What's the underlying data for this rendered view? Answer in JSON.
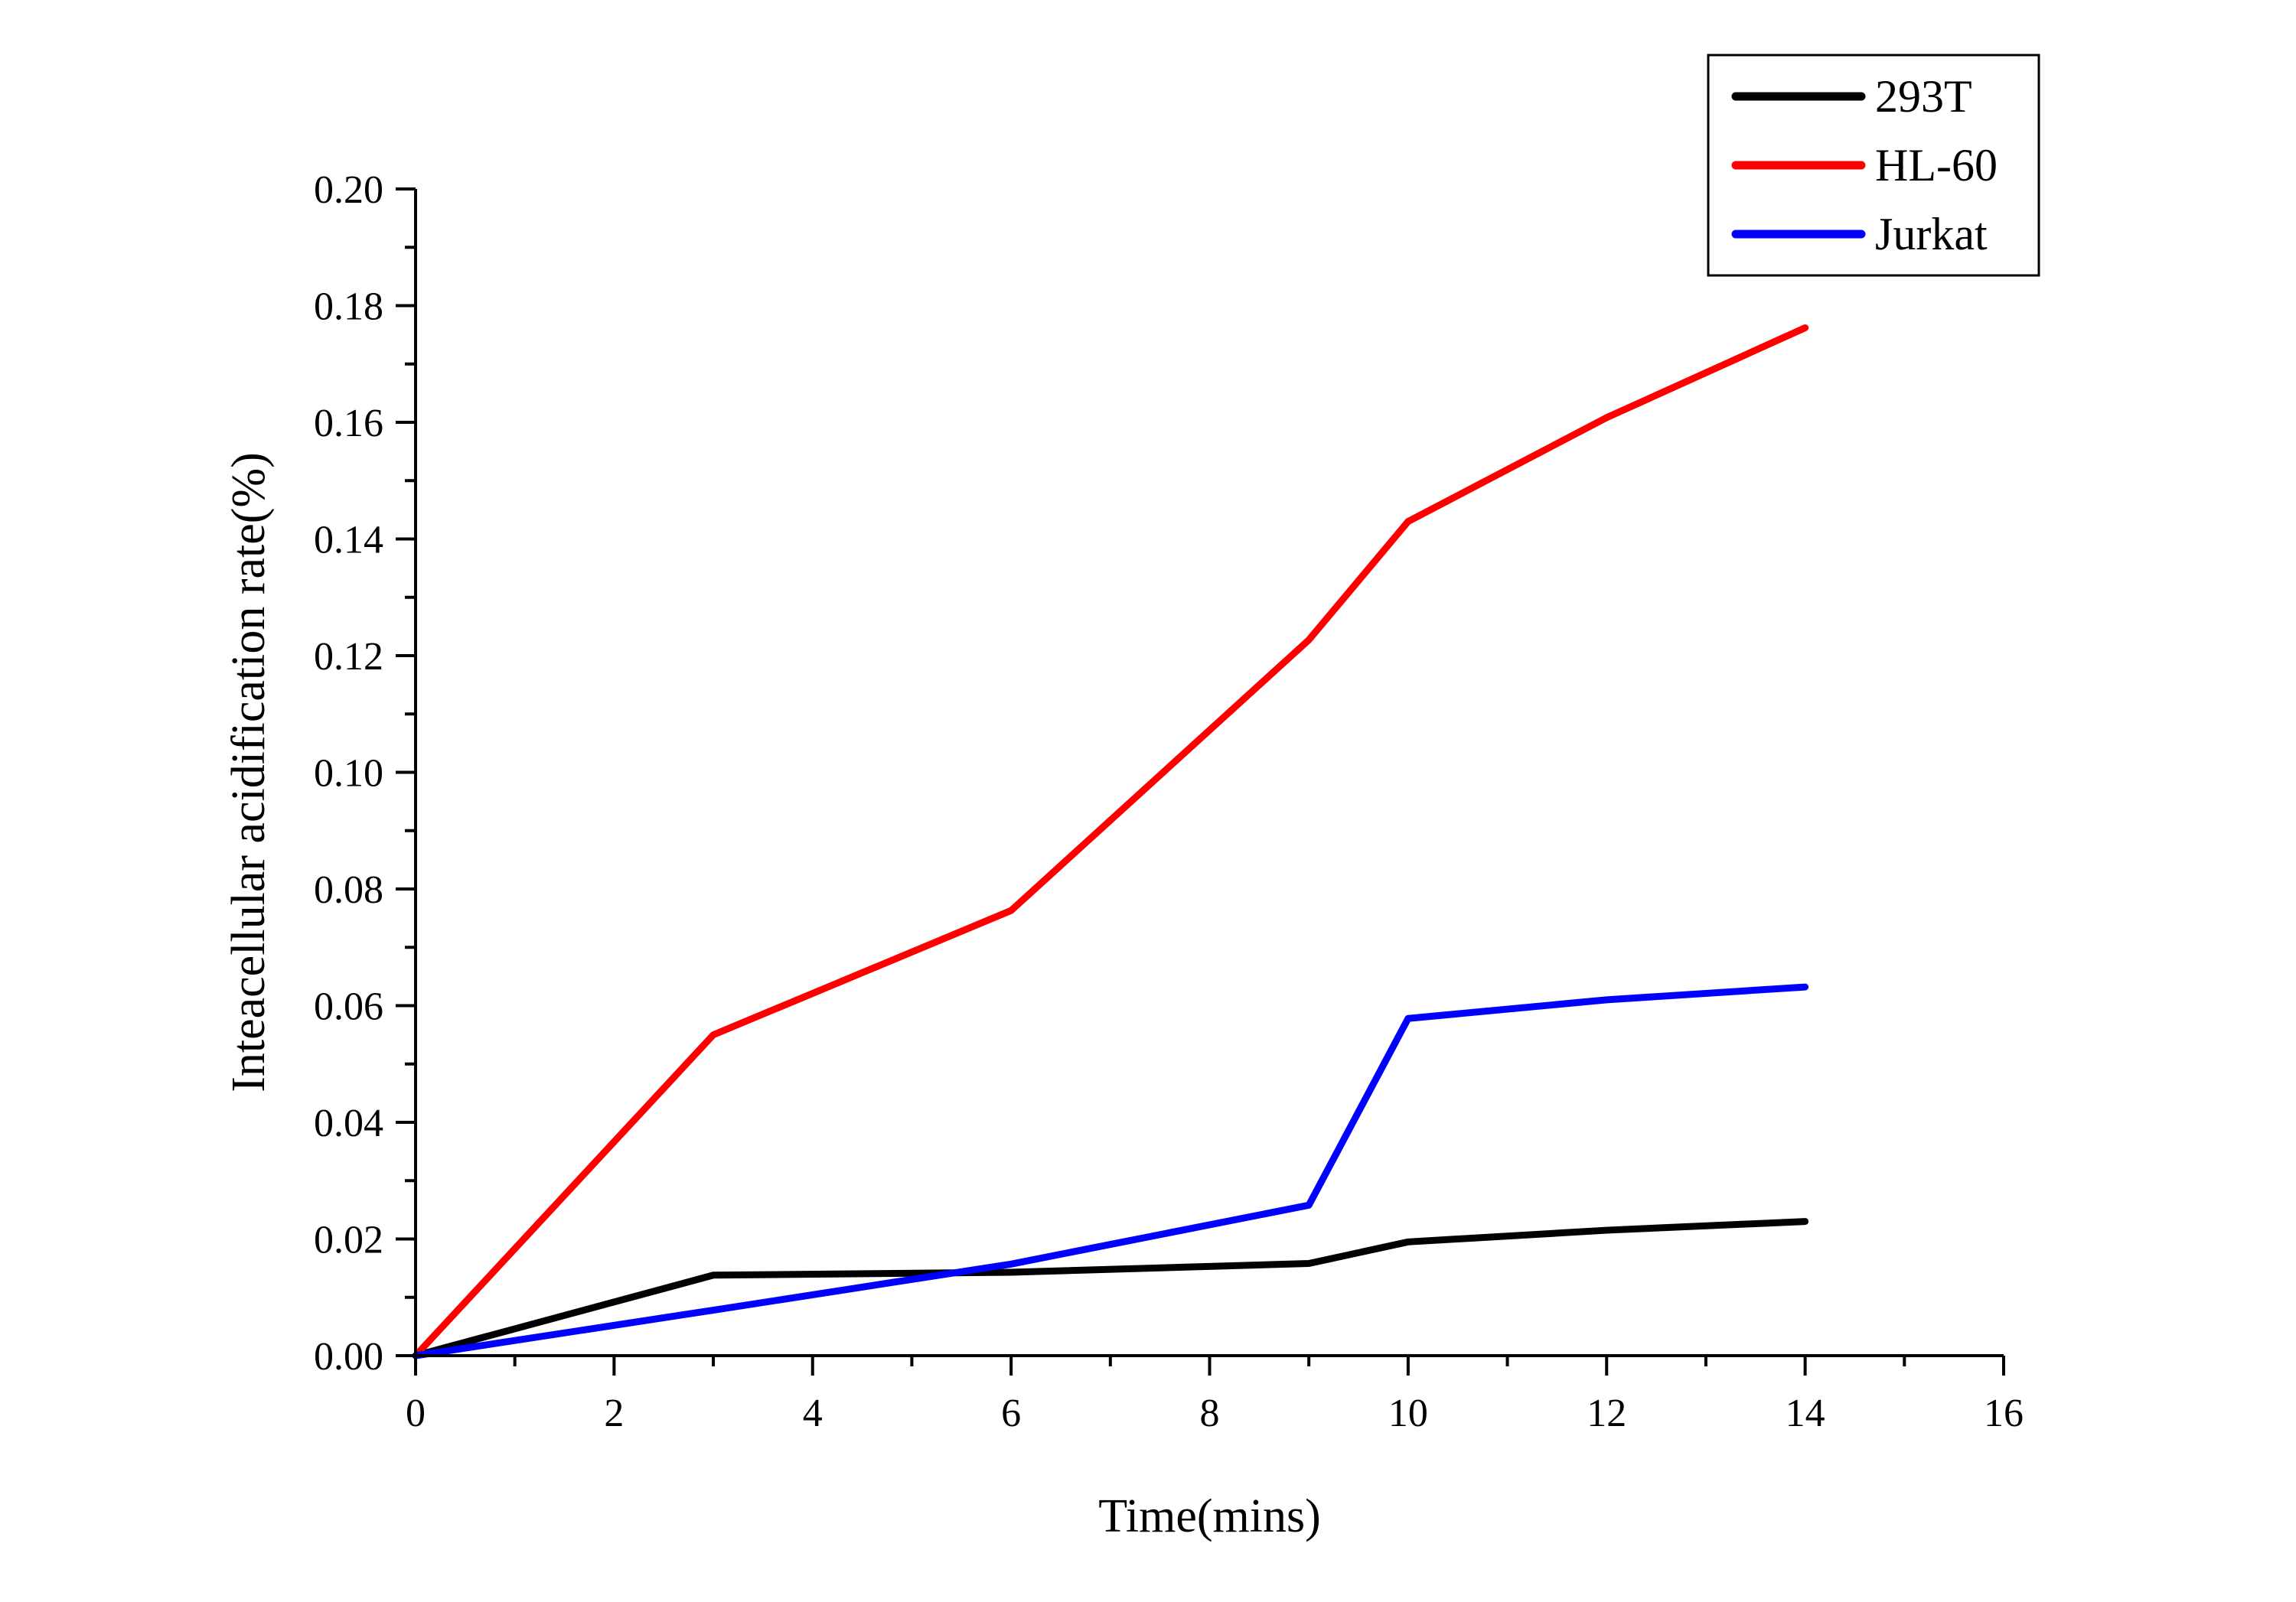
{
  "chart_data": {
    "type": "line",
    "xlabel": "Time(mins)",
    "ylabel": "Inteacellular acidification rate(%)",
    "xlim": [
      0,
      16
    ],
    "ylim": [
      0,
      0.2
    ],
    "x_ticks": [
      0,
      2,
      4,
      6,
      8,
      10,
      12,
      14,
      16
    ],
    "x_tick_labels": [
      "0",
      "2",
      "4",
      "6",
      "8",
      "10",
      "12",
      "14",
      "16"
    ],
    "y_ticks": [
      0,
      0.02,
      0.04,
      0.06,
      0.08,
      0.1,
      0.12,
      0.14,
      0.16,
      0.18,
      0.2
    ],
    "y_tick_labels": [
      "0.00",
      "0.02",
      "0.04",
      "0.06",
      "0.08",
      "0.10",
      "0.12",
      "0.14",
      "0.16",
      "0.18",
      "0.20"
    ],
    "grid": false,
    "legend_position": "top-right",
    "series": [
      {
        "name": "293T",
        "color": "#000000",
        "x": [
          0,
          3,
          6,
          9,
          10,
          12,
          14
        ],
        "values": [
          0.0,
          0.0138,
          0.0143,
          0.0158,
          0.0195,
          0.0215,
          0.023
        ]
      },
      {
        "name": "HL-60",
        "color": "#ff0000",
        "x": [
          0,
          3,
          6,
          9,
          10,
          12,
          14
        ],
        "values": [
          0.0,
          0.055,
          0.0763,
          0.1227,
          0.143,
          0.1608,
          0.1762
        ]
      },
      {
        "name": "Jurkat",
        "color": "#0000ff",
        "x": [
          0,
          3,
          6,
          9,
          10,
          12,
          14
        ],
        "values": [
          0.0,
          0.0078,
          0.0157,
          0.0258,
          0.0578,
          0.061,
          0.0632
        ]
      }
    ]
  }
}
